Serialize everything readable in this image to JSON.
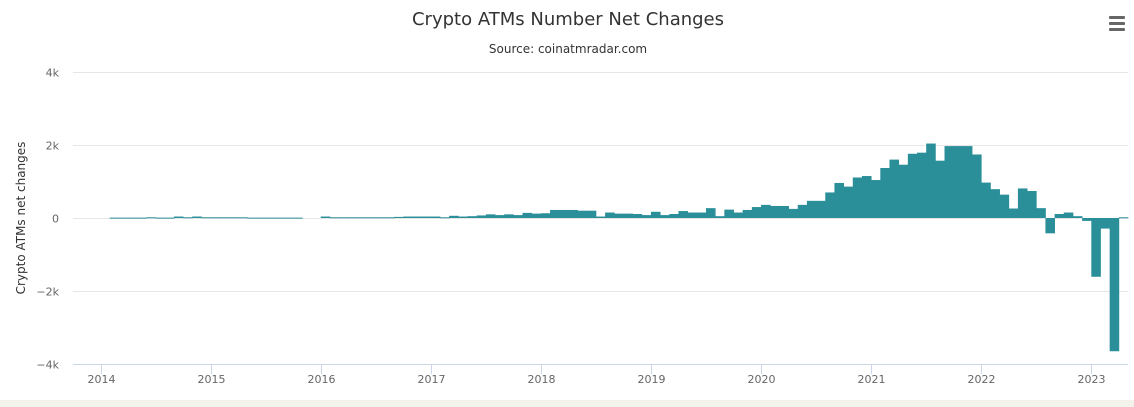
{
  "chart_data": {
    "type": "bar",
    "title": "Crypto ATMs Number Net Changes",
    "subtitle": "Source: coinatmradar.com",
    "xlabel": "",
    "ylabel": "Crypto ATMs net changes",
    "ylim": [
      -4000,
      4000
    ],
    "y_ticks": [
      -4000,
      -2000,
      0,
      2000,
      4000
    ],
    "y_tick_labels": [
      "−4k",
      "−2k",
      "0",
      "2k",
      "4k"
    ],
    "x_tick_labels": [
      "2014",
      "2015",
      "2016",
      "2017",
      "2018",
      "2019",
      "2020",
      "2021",
      "2022",
      "2023"
    ],
    "x_start": "2013-10",
    "x_end": "2023-04",
    "grid": true,
    "bar_color": "#2b8f9a",
    "bars": [
      {
        "x": "2014-02",
        "y": 10
      },
      {
        "x": "2014-03",
        "y": 10
      },
      {
        "x": "2014-04",
        "y": 10
      },
      {
        "x": "2014-05",
        "y": 10
      },
      {
        "x": "2014-06",
        "y": 20
      },
      {
        "x": "2014-07",
        "y": 10
      },
      {
        "x": "2014-08",
        "y": 10
      },
      {
        "x": "2014-09",
        "y": 40
      },
      {
        "x": "2014-10",
        "y": 20
      },
      {
        "x": "2014-11",
        "y": 40
      },
      {
        "x": "2014-12",
        "y": 20
      },
      {
        "x": "2015-01",
        "y": 20
      },
      {
        "x": "2015-02",
        "y": 20
      },
      {
        "x": "2015-03",
        "y": 20
      },
      {
        "x": "2015-04",
        "y": 20
      },
      {
        "x": "2015-05",
        "y": 10
      },
      {
        "x": "2015-06",
        "y": 10
      },
      {
        "x": "2015-07",
        "y": 10
      },
      {
        "x": "2015-08",
        "y": 10
      },
      {
        "x": "2015-09",
        "y": 10
      },
      {
        "x": "2015-10",
        "y": 10
      },
      {
        "x": "2016-01",
        "y": 40
      },
      {
        "x": "2016-02",
        "y": 20
      },
      {
        "x": "2016-03",
        "y": 20
      },
      {
        "x": "2016-04",
        "y": 20
      },
      {
        "x": "2016-05",
        "y": 20
      },
      {
        "x": "2016-06",
        "y": 20
      },
      {
        "x": "2016-07",
        "y": 20
      },
      {
        "x": "2016-08",
        "y": 20
      },
      {
        "x": "2016-09",
        "y": 30
      },
      {
        "x": "2016-10",
        "y": 40
      },
      {
        "x": "2016-11",
        "y": 40
      },
      {
        "x": "2016-12",
        "y": 40
      },
      {
        "x": "2017-01",
        "y": 40
      },
      {
        "x": "2017-02",
        "y": 20
      },
      {
        "x": "2017-03",
        "y": 60
      },
      {
        "x": "2017-04",
        "y": 40
      },
      {
        "x": "2017-05",
        "y": 50
      },
      {
        "x": "2017-06",
        "y": 70
      },
      {
        "x": "2017-07",
        "y": 100
      },
      {
        "x": "2017-08",
        "y": 80
      },
      {
        "x": "2017-09",
        "y": 100
      },
      {
        "x": "2017-10",
        "y": 80
      },
      {
        "x": "2017-11",
        "y": 140
      },
      {
        "x": "2017-12",
        "y": 120
      },
      {
        "x": "2018-01",
        "y": 130
      },
      {
        "x": "2018-02",
        "y": 220
      },
      {
        "x": "2018-03",
        "y": 220
      },
      {
        "x": "2018-04",
        "y": 220
      },
      {
        "x": "2018-05",
        "y": 200
      },
      {
        "x": "2018-06",
        "y": 200
      },
      {
        "x": "2018-07",
        "y": 40
      },
      {
        "x": "2018-08",
        "y": 150
      },
      {
        "x": "2018-09",
        "y": 120
      },
      {
        "x": "2018-10",
        "y": 120
      },
      {
        "x": "2018-11",
        "y": 110
      },
      {
        "x": "2018-12",
        "y": 80
      },
      {
        "x": "2019-01",
        "y": 170
      },
      {
        "x": "2019-02",
        "y": 80
      },
      {
        "x": "2019-03",
        "y": 110
      },
      {
        "x": "2019-04",
        "y": 190
      },
      {
        "x": "2019-05",
        "y": 150
      },
      {
        "x": "2019-06",
        "y": 150
      },
      {
        "x": "2019-07",
        "y": 270
      },
      {
        "x": "2019-08",
        "y": 50
      },
      {
        "x": "2019-09",
        "y": 230
      },
      {
        "x": "2019-10",
        "y": 150
      },
      {
        "x": "2019-11",
        "y": 220
      },
      {
        "x": "2019-12",
        "y": 300
      },
      {
        "x": "2020-01",
        "y": 360
      },
      {
        "x": "2020-02",
        "y": 330
      },
      {
        "x": "2020-03",
        "y": 330
      },
      {
        "x": "2020-04",
        "y": 250
      },
      {
        "x": "2020-05",
        "y": 360
      },
      {
        "x": "2020-06",
        "y": 470
      },
      {
        "x": "2020-07",
        "y": 470
      },
      {
        "x": "2020-08",
        "y": 700
      },
      {
        "x": "2020-09",
        "y": 960
      },
      {
        "x": "2020-10",
        "y": 860
      },
      {
        "x": "2020-11",
        "y": 1110
      },
      {
        "x": "2020-12",
        "y": 1150
      },
      {
        "x": "2021-01",
        "y": 1040
      },
      {
        "x": "2021-02",
        "y": 1370
      },
      {
        "x": "2021-03",
        "y": 1600
      },
      {
        "x": "2021-04",
        "y": 1460
      },
      {
        "x": "2021-05",
        "y": 1760
      },
      {
        "x": "2021-06",
        "y": 1790
      },
      {
        "x": "2021-07",
        "y": 2040
      },
      {
        "x": "2021-08",
        "y": 1570
      },
      {
        "x": "2021-09",
        "y": 1970
      },
      {
        "x": "2021-10",
        "y": 1970
      },
      {
        "x": "2021-11",
        "y": 1970
      },
      {
        "x": "2021-12",
        "y": 1740
      },
      {
        "x": "2022-01",
        "y": 970
      },
      {
        "x": "2022-02",
        "y": 790
      },
      {
        "x": "2022-03",
        "y": 640
      },
      {
        "x": "2022-04",
        "y": 260
      },
      {
        "x": "2022-05",
        "y": 810
      },
      {
        "x": "2022-06",
        "y": 740
      },
      {
        "x": "2022-07",
        "y": 270
      },
      {
        "x": "2022-08",
        "y": -420
      },
      {
        "x": "2022-09",
        "y": 110
      },
      {
        "x": "2022-10",
        "y": 150
      },
      {
        "x": "2022-11",
        "y": 50
      },
      {
        "x": "2022-12",
        "y": -80
      },
      {
        "x": "2023-01",
        "y": -1610
      },
      {
        "x": "2023-02",
        "y": -290
      },
      {
        "x": "2023-03",
        "y": -3650
      },
      {
        "x": "2023-04",
        "y": 20
      }
    ]
  }
}
